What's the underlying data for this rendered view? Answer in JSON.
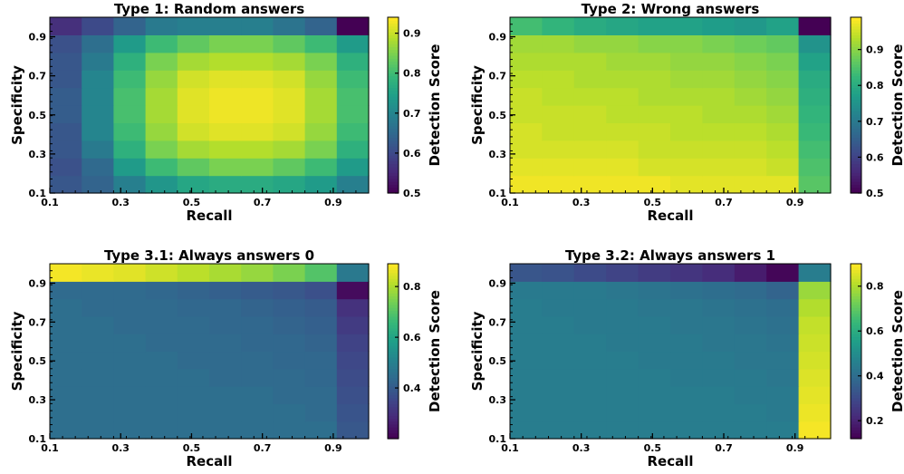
{
  "colormap": [
    "#440154",
    "#482878",
    "#3e4989",
    "#31688e",
    "#26828e",
    "#1f9e89",
    "#35b779",
    "#6ece58",
    "#b5de2b",
    "#fde725"
  ],
  "chart_data": [
    {
      "type": "heatmap",
      "title": "Type 1: Random answers",
      "xlabel": "Recall",
      "ylabel": "Specificity",
      "colorbar_label": "Detection Score",
      "x_ticks": [
        "0.1",
        "0.3",
        "0.5",
        "0.7",
        "0.9"
      ],
      "y_ticks": [
        "0.1",
        "0.3",
        "0.5",
        "0.7",
        "0.9"
      ],
      "colorbar_ticks": [
        "0.5",
        "0.6",
        "0.7",
        "0.8",
        "0.9"
      ],
      "vmin": 0.5,
      "vmax": 0.94,
      "x": [
        0.1,
        0.2,
        0.3,
        0.4,
        0.5,
        0.6,
        0.7,
        0.8,
        0.9,
        1.0
      ],
      "y": [
        0.1,
        0.2,
        0.3,
        0.4,
        0.5,
        0.6,
        0.7,
        0.8,
        0.9,
        1.0
      ],
      "z": [
        [
          0.62,
          0.64,
          0.69,
          0.73,
          0.76,
          0.77,
          0.77,
          0.76,
          0.74,
          0.69
        ],
        [
          0.61,
          0.65,
          0.74,
          0.8,
          0.83,
          0.85,
          0.85,
          0.83,
          0.8,
          0.74
        ],
        [
          0.62,
          0.68,
          0.78,
          0.85,
          0.88,
          0.89,
          0.89,
          0.88,
          0.85,
          0.78
        ],
        [
          0.62,
          0.7,
          0.8,
          0.87,
          0.91,
          0.92,
          0.92,
          0.91,
          0.87,
          0.8
        ],
        [
          0.63,
          0.7,
          0.81,
          0.88,
          0.92,
          0.93,
          0.93,
          0.92,
          0.88,
          0.81
        ],
        [
          0.63,
          0.7,
          0.81,
          0.88,
          0.92,
          0.93,
          0.93,
          0.92,
          0.88,
          0.81
        ],
        [
          0.62,
          0.7,
          0.8,
          0.87,
          0.91,
          0.92,
          0.92,
          0.91,
          0.87,
          0.8
        ],
        [
          0.62,
          0.68,
          0.78,
          0.85,
          0.88,
          0.89,
          0.89,
          0.88,
          0.85,
          0.78
        ],
        [
          0.61,
          0.66,
          0.74,
          0.8,
          0.83,
          0.85,
          0.85,
          0.83,
          0.8,
          0.74
        ],
        [
          0.56,
          0.6,
          0.64,
          0.68,
          0.69,
          0.69,
          0.69,
          0.67,
          0.64,
          0.5
        ]
      ]
    },
    {
      "type": "heatmap",
      "title": "Type 2: Wrong answers",
      "xlabel": "Recall",
      "ylabel": "Specificity",
      "colorbar_label": "Detection Score",
      "x_ticks": [
        "0.1",
        "0.3",
        "0.5",
        "0.7",
        "0.9"
      ],
      "y_ticks": [
        "0.1",
        "0.3",
        "0.5",
        "0.7",
        "0.9"
      ],
      "colorbar_ticks": [
        "0.5",
        "0.6",
        "0.7",
        "0.8",
        "0.9"
      ],
      "vmin": 0.5,
      "vmax": 0.99,
      "x": [
        0.1,
        0.2,
        0.3,
        0.4,
        0.5,
        0.6,
        0.7,
        0.8,
        0.9,
        1.0
      ],
      "y": [
        0.1,
        0.2,
        0.3,
        0.4,
        0.5,
        0.6,
        0.7,
        0.8,
        0.9,
        1.0
      ],
      "z": [
        [
          0.98,
          0.98,
          0.98,
          0.98,
          0.98,
          0.97,
          0.97,
          0.97,
          0.97,
          0.86
        ],
        [
          0.97,
          0.97,
          0.97,
          0.97,
          0.96,
          0.96,
          0.96,
          0.96,
          0.95,
          0.85
        ],
        [
          0.96,
          0.96,
          0.96,
          0.96,
          0.95,
          0.95,
          0.95,
          0.95,
          0.94,
          0.84
        ],
        [
          0.96,
          0.95,
          0.95,
          0.95,
          0.95,
          0.94,
          0.94,
          0.94,
          0.93,
          0.83
        ],
        [
          0.95,
          0.95,
          0.95,
          0.94,
          0.94,
          0.94,
          0.93,
          0.93,
          0.92,
          0.82
        ],
        [
          0.95,
          0.94,
          0.94,
          0.94,
          0.93,
          0.93,
          0.93,
          0.92,
          0.91,
          0.81
        ],
        [
          0.94,
          0.94,
          0.93,
          0.93,
          0.93,
          0.92,
          0.92,
          0.91,
          0.9,
          0.8
        ],
        [
          0.93,
          0.93,
          0.93,
          0.92,
          0.92,
          0.91,
          0.91,
          0.9,
          0.89,
          0.78
        ],
        [
          0.92,
          0.92,
          0.91,
          0.91,
          0.9,
          0.9,
          0.89,
          0.88,
          0.87,
          0.75
        ],
        [
          0.84,
          0.82,
          0.8,
          0.79,
          0.78,
          0.78,
          0.77,
          0.76,
          0.78,
          0.5
        ]
      ]
    },
    {
      "type": "heatmap",
      "title": "Type 3.1: Always answers 0",
      "xlabel": "Recall",
      "ylabel": "Specificity",
      "colorbar_label": "Detection Score",
      "x_ticks": [
        "0.1",
        "0.3",
        "0.5",
        "0.7",
        "0.9"
      ],
      "y_ticks": [
        "0.1",
        "0.3",
        "0.5",
        "0.7",
        "0.9"
      ],
      "colorbar_ticks": [
        "0.4",
        "0.6",
        "0.8"
      ],
      "vmin": 0.2,
      "vmax": 0.89,
      "x": [
        0.1,
        0.2,
        0.3,
        0.4,
        0.5,
        0.6,
        0.7,
        0.8,
        0.9,
        1.0
      ],
      "y": [
        0.1,
        0.2,
        0.3,
        0.4,
        0.5,
        0.6,
        0.7,
        0.8,
        0.9,
        1.0
      ],
      "z": [
        [
          0.45,
          0.45,
          0.45,
          0.45,
          0.45,
          0.45,
          0.45,
          0.45,
          0.45,
          0.39
        ],
        [
          0.45,
          0.45,
          0.45,
          0.45,
          0.45,
          0.45,
          0.45,
          0.45,
          0.44,
          0.38
        ],
        [
          0.45,
          0.45,
          0.45,
          0.45,
          0.45,
          0.45,
          0.45,
          0.44,
          0.44,
          0.37
        ],
        [
          0.45,
          0.45,
          0.45,
          0.45,
          0.45,
          0.44,
          0.44,
          0.44,
          0.43,
          0.36
        ],
        [
          0.45,
          0.45,
          0.45,
          0.45,
          0.44,
          0.44,
          0.44,
          0.43,
          0.43,
          0.35
        ],
        [
          0.45,
          0.45,
          0.45,
          0.44,
          0.44,
          0.44,
          0.43,
          0.43,
          0.42,
          0.34
        ],
        [
          0.45,
          0.45,
          0.44,
          0.44,
          0.44,
          0.43,
          0.43,
          0.42,
          0.41,
          0.32
        ],
        [
          0.45,
          0.44,
          0.44,
          0.44,
          0.43,
          0.43,
          0.42,
          0.41,
          0.4,
          0.3
        ],
        [
          0.44,
          0.44,
          0.44,
          0.43,
          0.42,
          0.41,
          0.4,
          0.39,
          0.37,
          0.22
        ],
        [
          0.88,
          0.87,
          0.86,
          0.84,
          0.82,
          0.8,
          0.78,
          0.75,
          0.7,
          0.48
        ]
      ]
    },
    {
      "type": "heatmap",
      "title": "Type 3.2: Always answers 1",
      "xlabel": "Recall",
      "ylabel": "Specificity",
      "colorbar_label": "Detection Score",
      "x_ticks": [
        "0.1",
        "0.3",
        "0.5",
        "0.7",
        "0.9"
      ],
      "y_ticks": [
        "0.1",
        "0.3",
        "0.5",
        "0.7",
        "0.9"
      ],
      "colorbar_ticks": [
        "0.2",
        "0.4",
        "0.6",
        "0.8"
      ],
      "vmin": 0.12,
      "vmax": 0.9,
      "x": [
        0.1,
        0.2,
        0.3,
        0.4,
        0.5,
        0.6,
        0.7,
        0.8,
        0.9,
        1.0
      ],
      "y": [
        0.1,
        0.2,
        0.3,
        0.4,
        0.5,
        0.6,
        0.7,
        0.8,
        0.9,
        1.0
      ],
      "z": [
        [
          0.45,
          0.45,
          0.45,
          0.45,
          0.45,
          0.45,
          0.45,
          0.45,
          0.45,
          0.89
        ],
        [
          0.45,
          0.45,
          0.45,
          0.45,
          0.45,
          0.45,
          0.45,
          0.45,
          0.44,
          0.88
        ],
        [
          0.45,
          0.45,
          0.45,
          0.45,
          0.45,
          0.45,
          0.45,
          0.44,
          0.44,
          0.87
        ],
        [
          0.45,
          0.45,
          0.45,
          0.45,
          0.45,
          0.44,
          0.44,
          0.44,
          0.43,
          0.86
        ],
        [
          0.45,
          0.45,
          0.45,
          0.45,
          0.44,
          0.44,
          0.44,
          0.43,
          0.43,
          0.85
        ],
        [
          0.45,
          0.45,
          0.45,
          0.44,
          0.44,
          0.44,
          0.43,
          0.43,
          0.42,
          0.84
        ],
        [
          0.45,
          0.45,
          0.44,
          0.44,
          0.44,
          0.43,
          0.43,
          0.42,
          0.41,
          0.83
        ],
        [
          0.45,
          0.44,
          0.44,
          0.44,
          0.43,
          0.43,
          0.42,
          0.41,
          0.4,
          0.81
        ],
        [
          0.44,
          0.44,
          0.44,
          0.43,
          0.42,
          0.41,
          0.4,
          0.39,
          0.37,
          0.78
        ],
        [
          0.33,
          0.32,
          0.3,
          0.28,
          0.26,
          0.24,
          0.22,
          0.18,
          0.13,
          0.45
        ]
      ]
    }
  ]
}
